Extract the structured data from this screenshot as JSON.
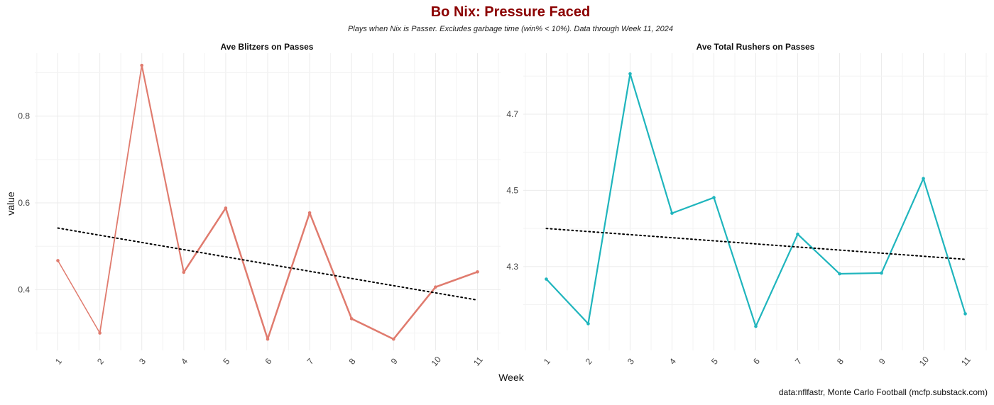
{
  "title": "Bo Nix: Pressure Faced",
  "subtitle": "Plays when Nix is Passer. Excludes garbage time (win% < 10%). Data through Week 11, 2024",
  "xlabel": "Week",
  "ylabel": "value",
  "caption": "data:nflfastr, Monte Carlo Football (mcfp.substack.com)",
  "colors": {
    "title": "#8b0000",
    "blitz": "#e07b6e",
    "rushers": "#1fb5bd",
    "trend": "#000000",
    "grid": "#ebebeb"
  },
  "chart_data": [
    {
      "type": "line",
      "title": "Ave Blitzers on Passes",
      "x": [
        1,
        2,
        3,
        4,
        5,
        6,
        7,
        8,
        9,
        10,
        11
      ],
      "x_tick_labels": [
        "1",
        "2",
        "3",
        "4",
        "5",
        "6",
        "7",
        "8",
        "9",
        "10",
        "11"
      ],
      "series": [
        {
          "values": [
            0.467,
            0.3,
            0.917,
            0.44,
            0.588,
            0.286,
            0.577,
            0.333,
            0.286,
            0.406,
            0.441
          ]
        }
      ],
      "trendline": {
        "style": "dotted",
        "start": 0.542,
        "end": 0.376
      },
      "ylim": [
        0.26,
        0.945
      ],
      "y_ticks": [
        0.4,
        0.6,
        0.8
      ],
      "y_tick_labels": [
        "0.4",
        "0.6",
        "0.8"
      ],
      "grid": true
    },
    {
      "type": "line",
      "title": "Ave Total Rushers on Passes",
      "x": [
        1,
        2,
        3,
        4,
        5,
        6,
        7,
        8,
        9,
        10,
        11
      ],
      "x_tick_labels": [
        "1",
        "2",
        "3",
        "4",
        "5",
        "6",
        "7",
        "8",
        "9",
        "10",
        "11"
      ],
      "series": [
        {
          "values": [
            4.267,
            4.15,
            4.806,
            4.44,
            4.481,
            4.143,
            4.385,
            4.281,
            4.283,
            4.531,
            4.176
          ]
        }
      ],
      "trendline": {
        "style": "dotted",
        "start": 4.4,
        "end": 4.319
      },
      "ylim": [
        4.08,
        4.86
      ],
      "y_ticks": [
        4.3,
        4.5,
        4.7
      ],
      "y_tick_labels": [
        "4.3",
        "4.5",
        "4.7"
      ],
      "grid": true
    }
  ]
}
